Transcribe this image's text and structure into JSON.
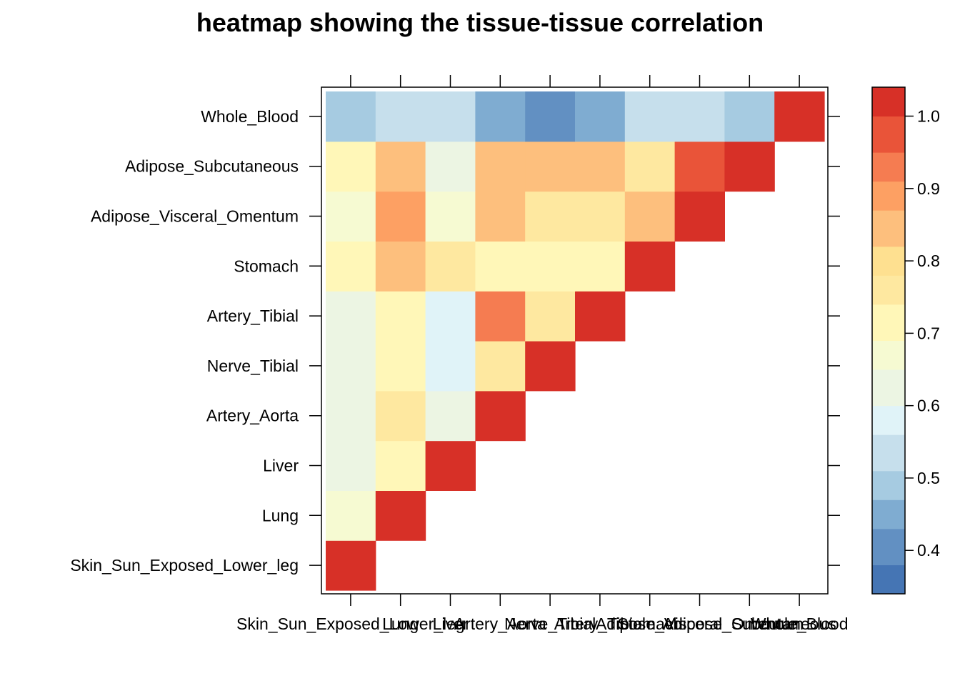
{
  "chart_data": {
    "type": "heatmap",
    "title": "heatmap showing the tissue-tissue correlation",
    "xlabel": "",
    "ylabel": "",
    "tissues": [
      "Skin_Sun_Exposed_Lower_leg",
      "Lung",
      "Liver",
      "Artery_Aorta",
      "Nerve_Tibial",
      "Artery_Tibial",
      "Stomach",
      "Adipose_Visceral_Omentum",
      "Adipose_Subcutaneous",
      "Whole_Blood"
    ],
    "x_categories": [
      "Skin_Sun_Exposed_Lower_leg",
      "Lung",
      "Liver",
      "Artery_Aorta",
      "Nerve_Tibial",
      "Artery_Tibial",
      "Stomach",
      "Adipose_Visceral_Omentum",
      "Adipose_Subcutaneous",
      "Whole_Blood"
    ],
    "y_categories": [
      "Skin_Sun_Exposed_Lower_leg",
      "Lung",
      "Liver",
      "Artery_Aorta",
      "Nerve_Tibial",
      "Artery_Tibial",
      "Stomach",
      "Adipose_Visceral_Omentum",
      "Adipose_Subcutaneous",
      "Whole_Blood"
    ],
    "values": [
      [
        1.0,
        null,
        null,
        null,
        null,
        null,
        null,
        null,
        null,
        null
      ],
      [
        0.68,
        1.0,
        null,
        null,
        null,
        null,
        null,
        null,
        null,
        null
      ],
      [
        0.63,
        0.72,
        1.0,
        null,
        null,
        null,
        null,
        null,
        null,
        null
      ],
      [
        0.63,
        0.77,
        0.64,
        1.0,
        null,
        null,
        null,
        null,
        null,
        null
      ],
      [
        0.63,
        0.72,
        0.59,
        0.77,
        1.0,
        null,
        null,
        null,
        null,
        null
      ],
      [
        0.63,
        0.72,
        0.58,
        0.93,
        0.77,
        1.0,
        null,
        null,
        null,
        null
      ],
      [
        0.72,
        0.82,
        0.77,
        0.72,
        0.72,
        0.72,
        1.0,
        null,
        null,
        null
      ],
      [
        0.68,
        0.87,
        0.68,
        0.82,
        0.77,
        0.77,
        0.82,
        1.0,
        null,
        null
      ],
      [
        0.72,
        0.82,
        0.64,
        0.82,
        0.82,
        0.82,
        0.77,
        0.97,
        1.0,
        null
      ],
      [
        0.47,
        0.54,
        0.51,
        0.43,
        0.38,
        0.43,
        0.51,
        0.51,
        0.47,
        1.0
      ]
    ],
    "colorbar": {
      "range": [
        0.34,
        1.04
      ],
      "breaks": [
        0.34,
        0.38,
        0.43,
        0.47,
        0.51,
        0.56,
        0.6,
        0.65,
        0.69,
        0.74,
        0.78,
        0.82,
        0.87,
        0.91,
        0.95,
        1.0,
        1.04
      ],
      "colors": [
        "#4575B4",
        "#6290C2",
        "#7FACD1",
        "#A6CBE1",
        "#C6DFEC",
        "#E0F3F8",
        "#ECF5E3",
        "#F6FAD2",
        "#FFF7B8",
        "#FEE8A0",
        "#FEE090",
        "#FDBF7D",
        "#FDA063",
        "#F57C51",
        "#E95439",
        "#D73027"
      ],
      "ticks": [
        0.4,
        0.5,
        0.6,
        0.7,
        0.8,
        0.9,
        1.0
      ],
      "tick_labels": [
        "0.4",
        "0.5",
        "0.6",
        "0.7",
        "0.8",
        "0.9",
        "1.0"
      ]
    }
  }
}
